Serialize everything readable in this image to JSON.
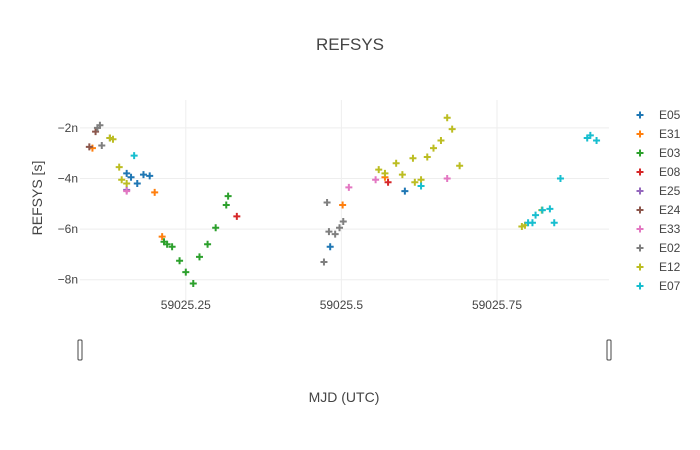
{
  "chart_data": {
    "type": "scatter",
    "title": "REFSYS",
    "xlabel": "MJD (UTC)",
    "ylabel": "REFSYS [s]",
    "xlim": [
      59025.08,
      59025.93
    ],
    "ylim": [
      -9.0,
      -0.9
    ],
    "x_ticks": [
      59025.25,
      59025.5,
      59025.75
    ],
    "x_tick_labels": [
      "59025.25",
      "59025.5",
      "59025.75"
    ],
    "y_ticks": [
      -8,
      -6,
      -4,
      -2
    ],
    "y_tick_labels": [
      "−8n",
      "−6n",
      "−4n",
      "−2n"
    ],
    "y_unit": "n",
    "grid": true,
    "legend": "right",
    "marker": "cross",
    "range_slider": true,
    "series": [
      {
        "name": "E05",
        "color": "#1f77b4",
        "x": [
          59025.162,
          59025.172,
          59025.182,
          59025.192,
          59025.155,
          59025.482,
          59025.602
        ],
        "y": [
          -3.95,
          -4.2,
          -3.85,
          -3.9,
          -3.8,
          -6.7,
          -4.5
        ]
      },
      {
        "name": "E31",
        "color": "#ff7f0e",
        "x": [
          59025.1,
          59025.2,
          59025.212,
          59025.502,
          59025.57
        ],
        "y": [
          -2.8,
          -4.55,
          -6.3,
          -5.05,
          -3.95
        ]
      },
      {
        "name": "E03",
        "color": "#2ca02c",
        "x": [
          59025.215,
          59025.22,
          59025.228,
          59025.24,
          59025.25,
          59025.262,
          59025.272,
          59025.285,
          59025.298,
          59025.315,
          59025.318
        ],
        "y": [
          -6.5,
          -6.6,
          -6.7,
          -7.25,
          -7.7,
          -8.15,
          -7.1,
          -6.6,
          -5.95,
          -5.05,
          -4.7
        ]
      },
      {
        "name": "E08",
        "color": "#d62728",
        "x": [
          59025.332,
          59025.575
        ],
        "y": [
          -5.5,
          -4.15
        ]
      },
      {
        "name": "E25",
        "color": "#9467bd",
        "x": [
          59025.155
        ],
        "y": [
          -4.45
        ]
      },
      {
        "name": "E24",
        "color": "#8c564b",
        "x": [
          59025.095,
          59025.105
        ],
        "y": [
          -2.75,
          -2.15
        ]
      },
      {
        "name": "E33",
        "color": "#e377c2",
        "x": [
          59025.155,
          59025.512,
          59025.555,
          59025.67
        ],
        "y": [
          -4.5,
          -4.35,
          -4.05,
          -4.0
        ]
      },
      {
        "name": "E02",
        "color": "#7f7f7f",
        "x": [
          59025.115,
          59025.128,
          59025.108,
          59025.112,
          59025.472,
          59025.477,
          59025.48,
          59025.49,
          59025.497,
          59025.503
        ],
        "y": [
          -2.7,
          -2.4,
          -2.0,
          -1.9,
          -7.3,
          -4.95,
          -6.1,
          -6.2,
          -5.95,
          -5.7
        ]
      },
      {
        "name": "E12",
        "color": "#bcbd22",
        "x": [
          59025.128,
          59025.133,
          59025.143,
          59025.147,
          59025.155,
          59025.56,
          59025.57,
          59025.588,
          59025.598,
          59025.615,
          59025.618,
          59025.628,
          59025.638,
          59025.648,
          59025.66,
          59025.67,
          59025.678,
          59025.69,
          59025.79,
          59025.795,
          59025.822
        ],
        "y": [
          -2.4,
          -2.45,
          -3.55,
          -4.05,
          -4.2,
          -3.65,
          -3.8,
          -3.4,
          -3.85,
          -3.2,
          -4.15,
          -4.05,
          -3.15,
          -2.8,
          -2.5,
          -1.6,
          -2.05,
          -3.5,
          -5.9,
          -5.85,
          -5.25
        ]
      },
      {
        "name": "E07",
        "color": "#17becf",
        "x": [
          59025.167,
          59025.628,
          59025.8,
          59025.807,
          59025.812,
          59025.823,
          59025.835,
          59025.842,
          59025.852,
          59025.895,
          59025.9,
          59025.91
        ],
        "y": [
          -3.1,
          -4.3,
          -5.75,
          -5.75,
          -5.45,
          -5.25,
          -5.2,
          -5.75,
          -4.0,
          -2.4,
          -2.3,
          -2.5
        ]
      }
    ]
  }
}
